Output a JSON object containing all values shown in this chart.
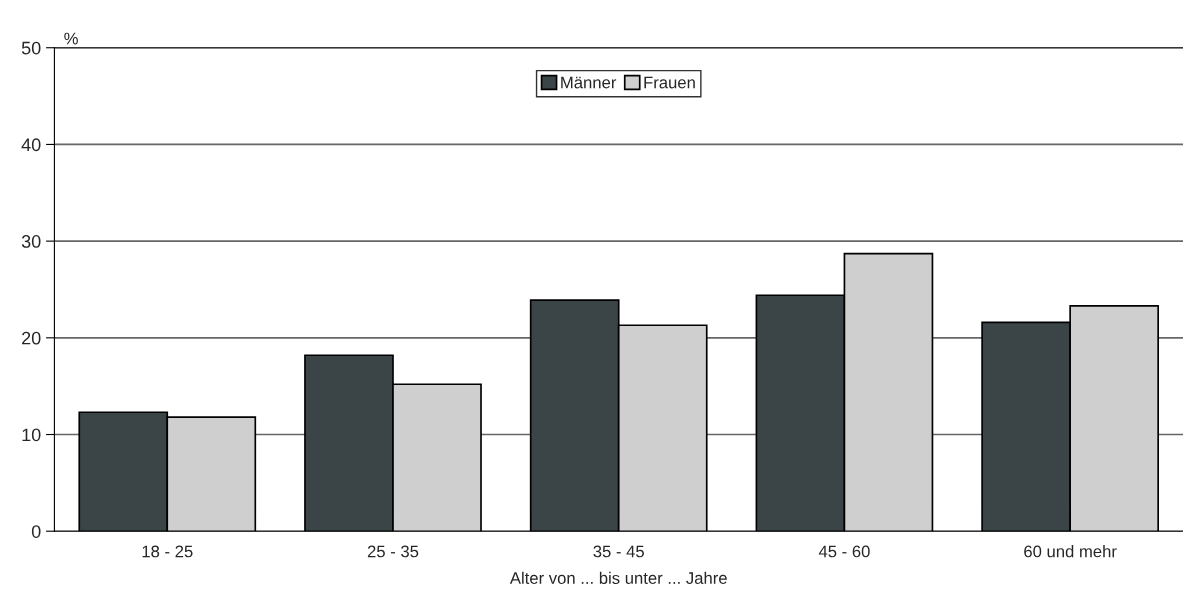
{
  "chart_data": {
    "type": "bar",
    "ylabel": "%",
    "xlabel": "Alter von ... bis unter ... Jahre",
    "categories": [
      "18 - 25",
      "25 - 35",
      "35 - 45",
      "45 - 60",
      "60 und mehr"
    ],
    "series": [
      {
        "name": "Männer",
        "color": "#3b4446",
        "values": [
          12.3,
          18.2,
          23.9,
          24.4,
          21.6
        ]
      },
      {
        "name": "Frauen",
        "color": "#cfcfcf",
        "values": [
          11.8,
          15.2,
          21.3,
          28.7,
          23.3
        ]
      }
    ],
    "ylim": [
      0,
      50
    ],
    "yticks": [
      0,
      10,
      20,
      30,
      40,
      50
    ],
    "grid": "y",
    "legend": "top"
  }
}
